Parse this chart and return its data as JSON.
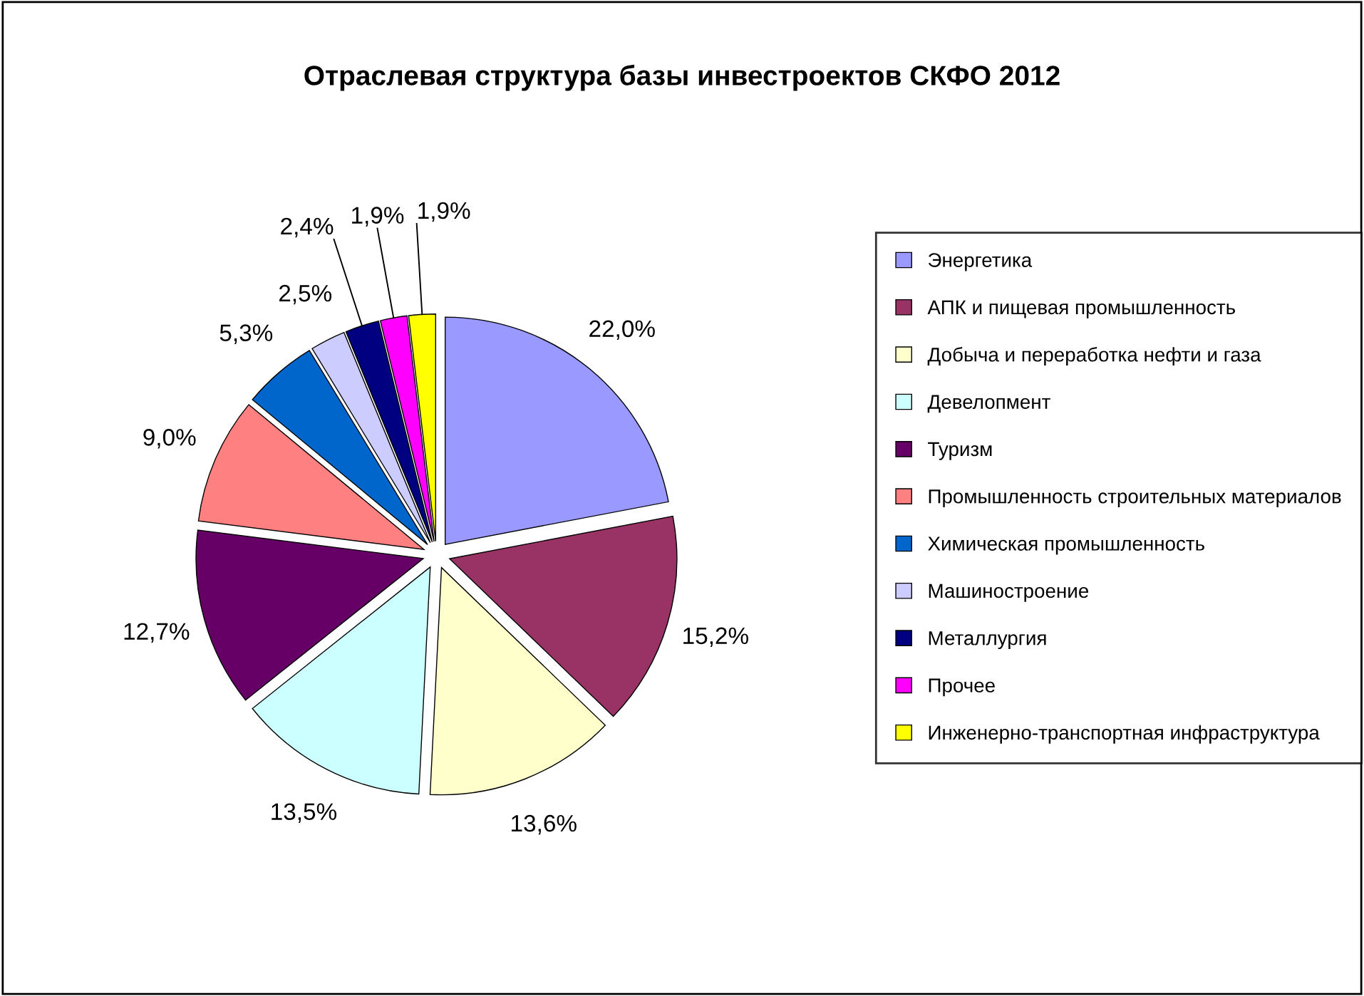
{
  "chart_data": {
    "type": "pie",
    "title": "Отраслевая структура базы инвестроектов СКФО 2012",
    "categories": [
      "Энергетика",
      "АПК и пищевая промышленность",
      "Добыча и переработка нефти и газа",
      "Девелопмент",
      "Туризм",
      "Промышленность строительных материалов",
      "Химическая промышленность",
      "Машиностроение",
      "Металлургия",
      "Прочее",
      "Инженерно-транспортная инфраструктура"
    ],
    "values": [
      22.0,
      15.2,
      13.6,
      13.5,
      12.7,
      9.0,
      5.3,
      2.5,
      2.4,
      1.9,
      1.9
    ],
    "value_labels": [
      "22,0%",
      "15,2%",
      "13,6%",
      "13,5%",
      "12,7%",
      "9,0%",
      "5,3%",
      "2,5%",
      "2,4%",
      "1,9%",
      "1,9%"
    ],
    "colors": [
      "#9999ff",
      "#993366",
      "#ffffcc",
      "#ccffff",
      "#660066",
      "#ff8080",
      "#0066cc",
      "#ccccff",
      "#000080",
      "#ff00ff",
      "#ffff00"
    ],
    "legend": "right"
  }
}
